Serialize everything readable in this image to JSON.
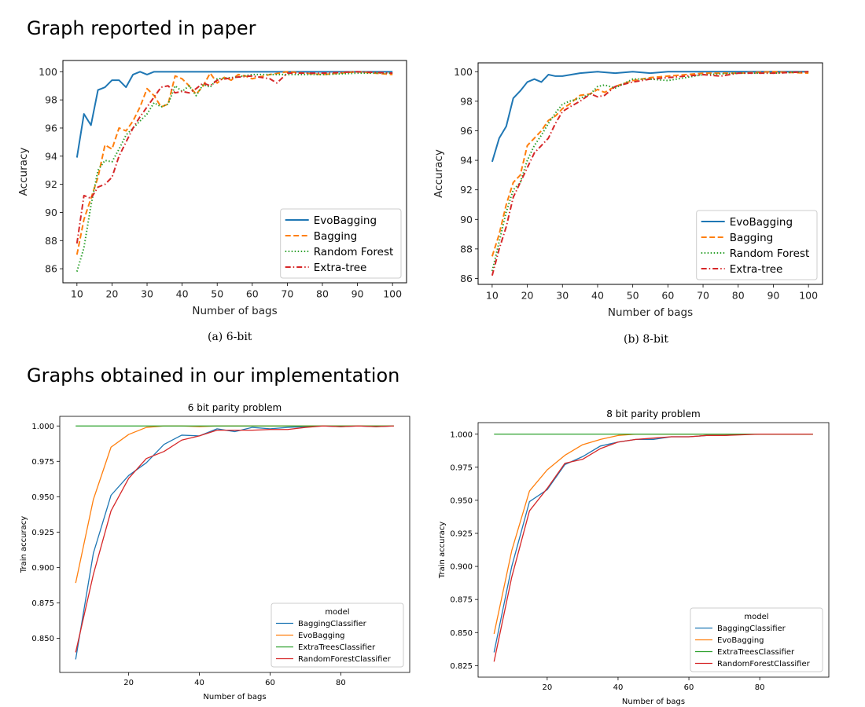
{
  "headings": {
    "top": "Graph reported in paper",
    "bottom": "Graphs  obtained in our implementation"
  },
  "captions": {
    "a": "(a) 6-bit",
    "b": "(b) 8-bit"
  },
  "chart_data": [
    {
      "id": "paper-6bit",
      "type": "line",
      "title": "",
      "xlabel": "Number of bags",
      "ylabel": "Accuracy",
      "xlim": [
        6,
        104
      ],
      "ylim": [
        85,
        100.8
      ],
      "xticks": [
        10,
        20,
        30,
        40,
        50,
        60,
        70,
        80,
        90,
        100
      ],
      "yticks": [
        86,
        88,
        90,
        92,
        94,
        96,
        98,
        100
      ],
      "ytick_labels": [
        "86",
        "88",
        "90",
        "92",
        "94",
        "96",
        "98",
        "100"
      ],
      "legend": {
        "title": "",
        "position": "lower-right"
      },
      "series": [
        {
          "name": "EvoBagging",
          "color": "#1f77b4",
          "dash": "solid",
          "x": [
            10,
            12,
            14,
            16,
            18,
            20,
            22,
            24,
            26,
            28,
            30,
            32,
            34,
            36,
            38,
            40,
            45,
            50,
            60,
            70,
            80,
            90,
            100
          ],
          "y": [
            93.9,
            97,
            96.2,
            98.7,
            98.9,
            99.4,
            99.4,
            98.9,
            99.8,
            100,
            99.8,
            100,
            100,
            100,
            100,
            100,
            100,
            100,
            100,
            100,
            100,
            100,
            100
          ]
        },
        {
          "name": "Bagging",
          "color": "#ff7f0e",
          "dash": "dashed",
          "x": [
            10,
            12,
            14,
            16,
            18,
            20,
            22,
            24,
            26,
            28,
            30,
            32,
            34,
            36,
            38,
            40,
            42,
            44,
            46,
            48,
            50,
            52,
            54,
            56,
            58,
            60,
            65,
            70,
            80,
            90,
            100
          ],
          "y": [
            87,
            89.5,
            91,
            92.5,
            94.8,
            94.5,
            96,
            95.8,
            96.5,
            97.5,
            98.8,
            98.3,
            97.5,
            97.7,
            99.7,
            99.5,
            99,
            98.4,
            99,
            99.9,
            99.2,
            99.6,
            99.4,
            99.8,
            99.7,
            99.5,
            99.8,
            100,
            99.8,
            100,
            99.8
          ]
        },
        {
          "name": "Random Forest",
          "color": "#2ca02c",
          "dash": "dotted",
          "x": [
            10,
            12,
            14,
            16,
            18,
            20,
            22,
            24,
            26,
            28,
            30,
            32,
            34,
            36,
            38,
            40,
            42,
            44,
            46,
            48,
            50,
            55,
            60,
            70,
            80,
            90,
            100
          ],
          "y": [
            85.8,
            87.5,
            90.5,
            93,
            93.7,
            93.6,
            94.5,
            95.5,
            96,
            96.5,
            97,
            97.8,
            97.5,
            97.7,
            99,
            98.6,
            99,
            98.3,
            99.1,
            98.9,
            99.5,
            99.6,
            99.8,
            99.8,
            99.8,
            99.9,
            99.9
          ]
        },
        {
          "name": "Extra-tree",
          "color": "#d62728",
          "dash": "dashdot",
          "x": [
            10,
            12,
            14,
            16,
            18,
            20,
            22,
            24,
            26,
            28,
            30,
            32,
            34,
            36,
            38,
            40,
            42,
            44,
            46,
            48,
            50,
            55,
            60,
            65,
            67,
            70,
            80,
            90,
            100
          ],
          "y": [
            87.8,
            91.2,
            91,
            91.8,
            92,
            92.5,
            94,
            95,
            96,
            96.8,
            97.5,
            98.2,
            98.9,
            99,
            98.5,
            98.6,
            98.5,
            98.8,
            99.2,
            99,
            99.4,
            99.6,
            99.7,
            99.5,
            99.2,
            99.9,
            99.9,
            100,
            99.9
          ]
        }
      ]
    },
    {
      "id": "paper-8bit",
      "type": "line",
      "title": "",
      "xlabel": "Number of bags",
      "ylabel": "Accuracy",
      "xlim": [
        6,
        104
      ],
      "ylim": [
        85.6,
        100.6
      ],
      "xticks": [
        10,
        20,
        30,
        40,
        50,
        60,
        70,
        80,
        90,
        100
      ],
      "yticks": [
        86,
        88,
        90,
        92,
        94,
        96,
        98,
        100
      ],
      "ytick_labels": [
        "86",
        "88",
        "90",
        "92",
        "94",
        "96",
        "98",
        "100"
      ],
      "legend": {
        "title": "",
        "position": "lower-right"
      },
      "series": [
        {
          "name": "EvoBagging",
          "color": "#1f77b4",
          "dash": "solid",
          "x": [
            10,
            12,
            14,
            16,
            18,
            20,
            22,
            24,
            26,
            28,
            30,
            35,
            40,
            45,
            50,
            55,
            60,
            70,
            80,
            90,
            100
          ],
          "y": [
            93.9,
            95.5,
            96.3,
            98.2,
            98.7,
            99.3,
            99.5,
            99.3,
            99.8,
            99.7,
            99.7,
            99.9,
            100,
            99.9,
            100,
            99.9,
            100,
            100,
            100,
            100,
            100
          ]
        },
        {
          "name": "Bagging",
          "color": "#ff7f0e",
          "dash": "dashed",
          "x": [
            10,
            12,
            14,
            16,
            18,
            20,
            22,
            24,
            26,
            28,
            30,
            32,
            35,
            38,
            40,
            42,
            45,
            50,
            55,
            60,
            70,
            80,
            90,
            100
          ],
          "y": [
            87.5,
            89,
            91,
            92.5,
            93,
            95,
            95.5,
            96,
            96.7,
            97,
            97.5,
            97.8,
            98.4,
            98.5,
            98.8,
            98.6,
            99,
            99.4,
            99.6,
            99.7,
            99.9,
            99.9,
            100,
            99.9
          ]
        },
        {
          "name": "Random Forest",
          "color": "#2ca02c",
          "dash": "dotted",
          "x": [
            10,
            12,
            14,
            16,
            18,
            20,
            22,
            24,
            26,
            28,
            30,
            32,
            35,
            38,
            40,
            42,
            45,
            50,
            55,
            60,
            70,
            80,
            90,
            100
          ],
          "y": [
            86.5,
            88.5,
            90.5,
            92,
            92.5,
            94,
            95,
            95.7,
            96.5,
            97.2,
            97.8,
            98,
            98.2,
            98.5,
            99,
            99.1,
            98.9,
            99.5,
            99.5,
            99.4,
            99.8,
            99.9,
            99.9,
            100
          ]
        },
        {
          "name": "Extra-tree",
          "color": "#d62728",
          "dash": "dashdot",
          "x": [
            10,
            12,
            14,
            16,
            18,
            20,
            22,
            24,
            26,
            28,
            30,
            32,
            35,
            38,
            40,
            42,
            45,
            50,
            55,
            60,
            65,
            70,
            75,
            80,
            90,
            100
          ],
          "y": [
            86.2,
            88,
            89.5,
            91.5,
            92.5,
            93.5,
            94.5,
            95,
            95.5,
            96.5,
            97.3,
            97.6,
            98,
            98.5,
            98.3,
            98.4,
            99,
            99.3,
            99.5,
            99.6,
            99.7,
            99.8,
            99.7,
            99.9,
            99.9,
            100
          ]
        }
      ]
    },
    {
      "id": "impl-6bit",
      "type": "line",
      "title": "6 bit parity problem",
      "xlabel": "Number of bags",
      "ylabel": "Train accuracy",
      "xlim": [
        0.5,
        99.5
      ],
      "ylim": [
        0.8258,
        1.0068
      ],
      "xticks": [
        20,
        40,
        60,
        80
      ],
      "yticks": [
        0.85,
        0.875,
        0.9,
        0.925,
        0.95,
        0.975,
        1.0
      ],
      "ytick_labels": [
        "0.850",
        "0.875",
        "0.900",
        "0.925",
        "0.950",
        "0.975",
        "1.000"
      ],
      "legend": {
        "title": "model",
        "position": "lower-right"
      },
      "series": [
        {
          "name": "BaggingClassifier",
          "color": "#1f77b4",
          "dash": "solid",
          "x": [
            5,
            10,
            15,
            20,
            25,
            30,
            35,
            40,
            45,
            50,
            55,
            60,
            65,
            70,
            75,
            80,
            85,
            90,
            95
          ],
          "y": [
            0.835,
            0.91,
            0.951,
            0.965,
            0.974,
            0.987,
            0.9935,
            0.993,
            0.998,
            0.996,
            0.999,
            0.998,
            0.999,
            0.9995,
            1.0,
            0.9995,
            1.0,
            0.9995,
            1.0
          ]
        },
        {
          "name": "EvoBagging",
          "color": "#ff7f0e",
          "dash": "solid",
          "x": [
            5,
            10,
            15,
            20,
            25,
            30,
            35,
            40,
            45,
            50,
            55,
            60,
            65,
            70,
            75,
            80,
            85,
            90,
            95
          ],
          "y": [
            0.889,
            0.948,
            0.985,
            0.994,
            0.999,
            1.0,
            1.0,
            0.9995,
            1.0,
            1.0,
            1.0,
            1.0,
            1.0,
            1.0,
            1.0,
            1.0,
            1.0,
            1.0,
            1.0
          ]
        },
        {
          "name": "ExtraTreesClassifier",
          "color": "#2ca02c",
          "dash": "solid",
          "x": [
            5,
            10,
            15,
            20,
            25,
            30,
            35,
            40,
            45,
            50,
            55,
            60,
            65,
            70,
            75,
            80,
            85,
            90,
            95
          ],
          "y": [
            1.0,
            1.0,
            1.0,
            1.0,
            1.0,
            1.0,
            1.0,
            1.0,
            1.0,
            1.0,
            1.0,
            1.0,
            1.0,
            1.0,
            1.0,
            1.0,
            1.0,
            1.0,
            1.0
          ]
        },
        {
          "name": "RandomForestClassifier",
          "color": "#d62728",
          "dash": "solid",
          "x": [
            5,
            10,
            15,
            20,
            25,
            30,
            35,
            40,
            45,
            50,
            55,
            60,
            65,
            70,
            75,
            80,
            85,
            90,
            95
          ],
          "y": [
            0.84,
            0.895,
            0.94,
            0.963,
            0.977,
            0.982,
            0.99,
            0.993,
            0.997,
            0.997,
            0.997,
            0.9975,
            0.9975,
            0.999,
            1.0,
            0.9995,
            1.0,
            0.9995,
            1.0
          ]
        }
      ]
    },
    {
      "id": "impl-8bit",
      "type": "line",
      "title": "8 bit parity problem",
      "xlabel": "Number of bags",
      "ylabel": "Train accuracy",
      "xlim": [
        0.5,
        99.5
      ],
      "ylim": [
        0.8163,
        1.0087
      ],
      "xticks": [
        20,
        40,
        60,
        80
      ],
      "yticks": [
        0.825,
        0.85,
        0.875,
        0.9,
        0.925,
        0.95,
        0.975,
        1.0
      ],
      "ytick_labels": [
        "0.825",
        "0.850",
        "0.875",
        "0.900",
        "0.925",
        "0.950",
        "0.975",
        "1.000"
      ],
      "legend": {
        "title": "model",
        "position": "lower-right"
      },
      "series": [
        {
          "name": "BaggingClassifier",
          "color": "#1f77b4",
          "dash": "solid",
          "x": [
            5,
            10,
            15,
            20,
            25,
            30,
            35,
            40,
            45,
            50,
            55,
            60,
            65,
            70,
            75,
            80,
            85,
            90,
            95
          ],
          "y": [
            0.835,
            0.9,
            0.949,
            0.958,
            0.977,
            0.983,
            0.991,
            0.994,
            0.996,
            0.996,
            0.998,
            0.998,
            0.999,
            0.999,
            1.0,
            1.0,
            1.0,
            1.0,
            1.0
          ]
        },
        {
          "name": "EvoBagging",
          "color": "#ff7f0e",
          "dash": "solid",
          "x": [
            5,
            10,
            15,
            20,
            25,
            30,
            35,
            40,
            45,
            50,
            55,
            60,
            65,
            70,
            75,
            80,
            85,
            90,
            95
          ],
          "y": [
            0.849,
            0.912,
            0.957,
            0.973,
            0.984,
            0.992,
            0.996,
            0.999,
            1.0,
            1.0,
            1.0,
            1.0,
            1.0,
            1.0,
            1.0,
            1.0,
            1.0,
            1.0,
            1.0
          ]
        },
        {
          "name": "ExtraTreesClassifier",
          "color": "#2ca02c",
          "dash": "solid",
          "x": [
            5,
            10,
            15,
            20,
            25,
            30,
            35,
            40,
            45,
            50,
            55,
            60,
            65,
            70,
            75,
            80,
            85,
            90,
            95
          ],
          "y": [
            1.0,
            1.0,
            1.0,
            1.0,
            1.0,
            1.0,
            1.0,
            1.0,
            1.0,
            1.0,
            1.0,
            1.0,
            1.0,
            1.0,
            1.0,
            1.0,
            1.0,
            1.0,
            1.0
          ]
        },
        {
          "name": "RandomForestClassifier",
          "color": "#d62728",
          "dash": "solid",
          "x": [
            5,
            10,
            15,
            20,
            25,
            30,
            35,
            40,
            45,
            50,
            55,
            60,
            65,
            70,
            75,
            80,
            85,
            90,
            95
          ],
          "y": [
            0.828,
            0.892,
            0.942,
            0.959,
            0.978,
            0.981,
            0.989,
            0.994,
            0.996,
            0.997,
            0.998,
            0.998,
            0.999,
            0.999,
            0.9995,
            1.0,
            1.0,
            1.0,
            1.0
          ]
        }
      ]
    }
  ]
}
